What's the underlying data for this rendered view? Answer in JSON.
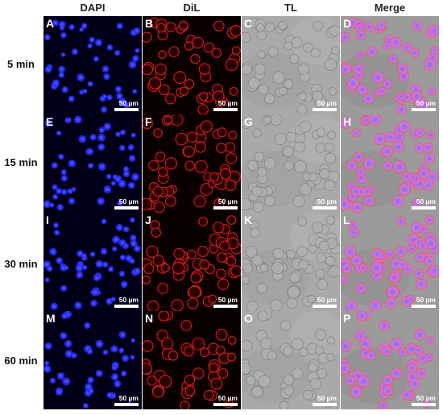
{
  "columns": [
    {
      "key": "dapi",
      "label": "DAPI"
    },
    {
      "key": "dil",
      "label": "DiL"
    },
    {
      "key": "tl",
      "label": "TL"
    },
    {
      "key": "merge",
      "label": "Merge"
    }
  ],
  "rows": [
    {
      "label": "5 min",
      "panels": [
        "A",
        "B",
        "C",
        "D"
      ]
    },
    {
      "label": "15 min",
      "panels": [
        "E",
        "F",
        "G",
        "H"
      ]
    },
    {
      "label": "30 min",
      "panels": [
        "I",
        "J",
        "K",
        "L"
      ]
    },
    {
      "label": "60 min",
      "panels": [
        "M",
        "N",
        "O",
        "P"
      ]
    }
  ],
  "scale_bar_label": "50 µm",
  "colors": {
    "dapi_background": "#020018",
    "dapi_nucleus": "#2a2cff",
    "dil_background": "#0a0000",
    "dil_membrane": "#e02020",
    "tl_background": "#a9a9a9",
    "merge_background": "#9b9b9b",
    "merge_cell": "#c778d8"
  }
}
